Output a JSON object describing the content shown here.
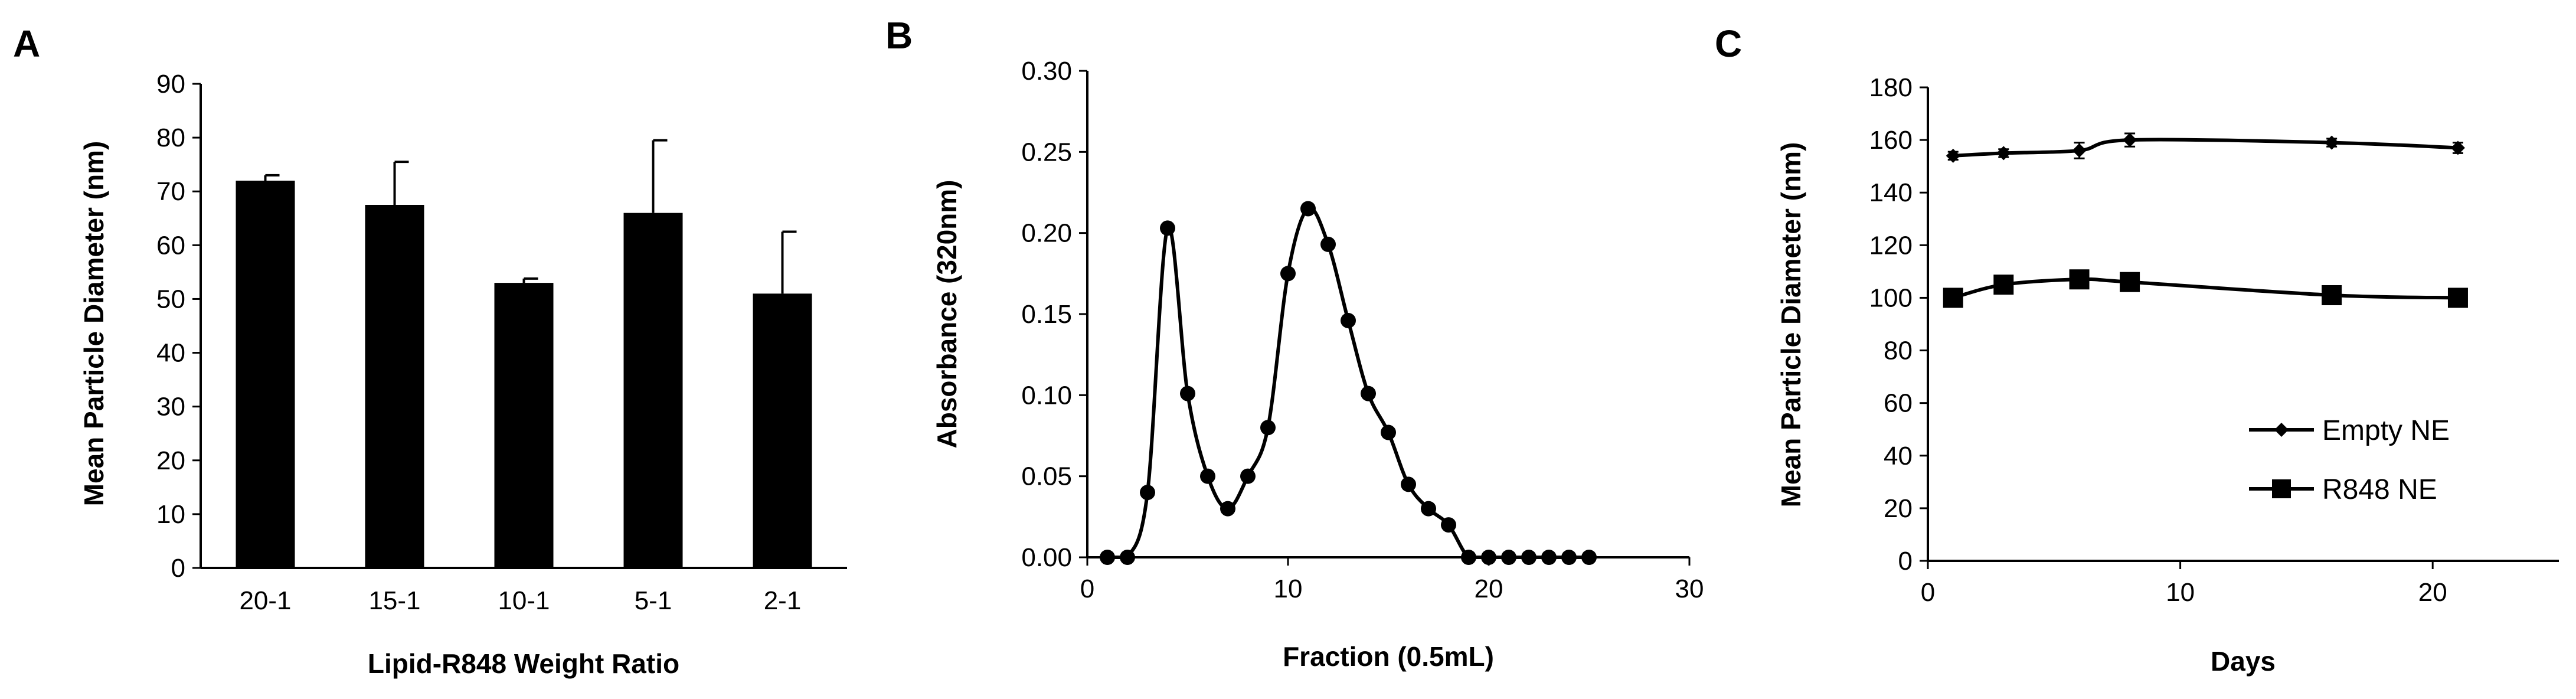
{
  "chart_data": [
    {
      "panel": "A",
      "type": "bar",
      "xlabel": "Lipid-R848 Weight Ratio",
      "ylabel": "Mean Particle Diameter (nm)",
      "categories": [
        "20-1",
        "15-1",
        "10-1",
        "5-1",
        "2-1"
      ],
      "values": [
        72,
        67.5,
        53,
        66,
        51
      ],
      "error": [
        1,
        8,
        0.8,
        13.5,
        11.5
      ],
      "ylim": [
        0,
        90
      ],
      "yticks": [
        0,
        10,
        20,
        30,
        40,
        50,
        60,
        70,
        80,
        90
      ],
      "grid": false,
      "bar_color": "#000000"
    },
    {
      "panel": "B",
      "type": "line",
      "xlabel": "Fraction (0.5mL)",
      "ylabel": "Absorbance (320nm)",
      "x": [
        1,
        2,
        3,
        4,
        5,
        6,
        7,
        8,
        9,
        10,
        11,
        12,
        13,
        14,
        15,
        16,
        17,
        18,
        19,
        20,
        21,
        22,
        23,
        24,
        25
      ],
      "y": [
        0.0,
        0.0,
        0.04,
        0.203,
        0.101,
        0.05,
        0.03,
        0.05,
        0.08,
        0.175,
        0.215,
        0.193,
        0.146,
        0.101,
        0.077,
        0.045,
        0.03,
        0.02,
        0.0,
        0.0,
        0.0,
        0.0,
        0.0,
        0.0,
        0.0
      ],
      "xlim": [
        0,
        30
      ],
      "xticks": [
        0,
        10,
        20,
        30
      ],
      "ylim": [
        0,
        0.3
      ],
      "yticks": [
        "0.00",
        "0.05",
        "0.10",
        "0.15",
        "0.20",
        "0.25",
        "0.30"
      ],
      "grid": false,
      "marker": "circle"
    },
    {
      "panel": "C",
      "type": "line",
      "xlabel": "Days",
      "ylabel": "Mean Particle Diameter (nm)",
      "x": [
        1,
        3,
        6,
        8,
        16,
        21
      ],
      "series": [
        {
          "name": "Empty NE",
          "marker": "diamond",
          "values": [
            154,
            155,
            156,
            160,
            159,
            157
          ],
          "error": [
            1.5,
            1.5,
            3,
            2.5,
            1.5,
            2
          ]
        },
        {
          "name": "R848 NE",
          "marker": "square",
          "values": [
            100,
            105,
            107,
            106,
            101,
            100
          ],
          "error": [
            1,
            1,
            1,
            1,
            1,
            1
          ]
        }
      ],
      "xlim": [
        0,
        25
      ],
      "xticks": [
        0,
        10,
        20
      ],
      "ylim": [
        0,
        180
      ],
      "yticks": [
        0,
        20,
        40,
        60,
        80,
        100,
        120,
        140,
        160,
        180
      ],
      "grid": false,
      "legend_position": "bottom-right"
    }
  ]
}
